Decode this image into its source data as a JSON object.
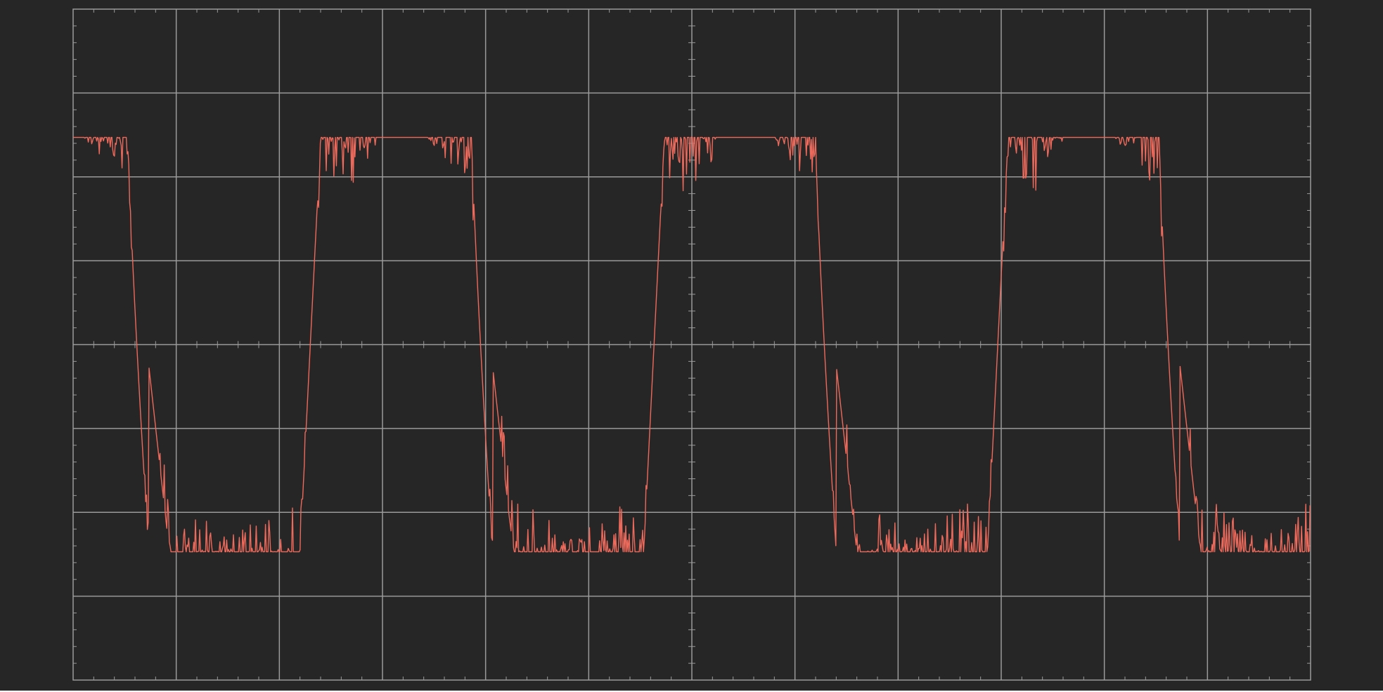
{
  "scope": {
    "colors": {
      "background": "#262626",
      "grid": "#9a9a9a",
      "trace": "#ec6a5c"
    },
    "grid": {
      "divisions_x": 12,
      "divisions_y": 8,
      "minor_ticks_per_division": 5
    },
    "trace": {
      "waveform": "noisy-square",
      "cycles": 3.6,
      "high_level_div": 2.47,
      "low_level_div": -2.47,
      "noise": "burst-noise-near-transitions"
    }
  }
}
